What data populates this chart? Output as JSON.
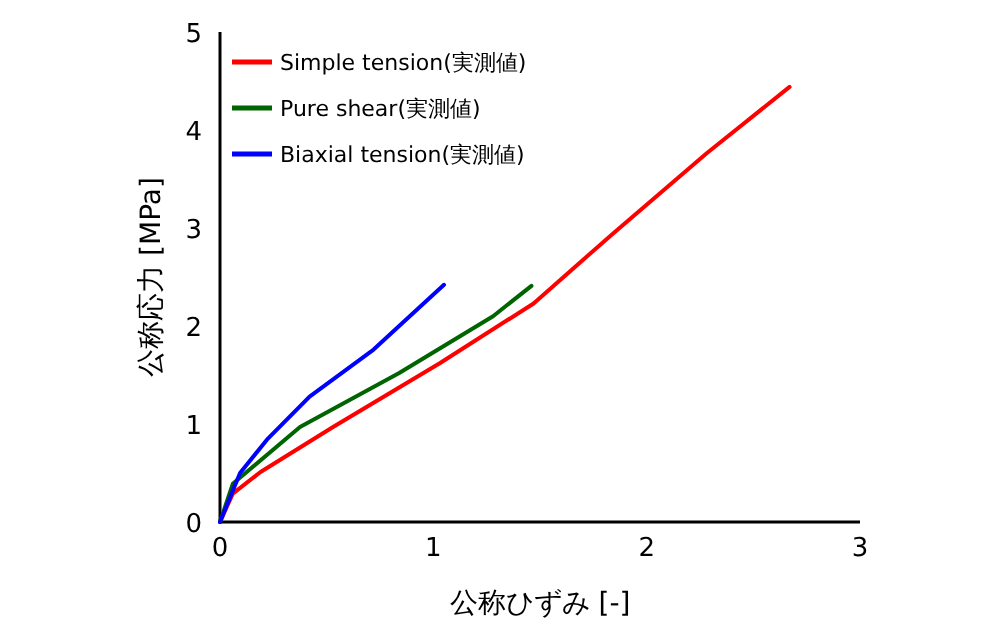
{
  "chart_data": {
    "type": "line",
    "xlabel": "公称ひずみ [-]",
    "ylabel": "公称応力 [MPa]",
    "xlim": [
      0,
      3
    ],
    "ylim": [
      0,
      5
    ],
    "xticks": [
      0,
      1,
      2,
      3
    ],
    "yticks": [
      0,
      1,
      2,
      3,
      4,
      5
    ],
    "legend": "top left",
    "grid": false,
    "marker": "none",
    "line_style": "solid",
    "series": [
      {
        "name": "Simple tension(実測値)",
        "color": "#ff0000",
        "x": [
          0,
          0.06,
          0.19,
          0.53,
          1.03,
          1.47,
          1.84,
          2.28,
          2.67
        ],
        "values": [
          0,
          0.29,
          0.51,
          0.97,
          1.62,
          2.23,
          2.94,
          3.76,
          4.44
        ]
      },
      {
        "name": "Pure shear(実測値)",
        "color": "#006400",
        "x": [
          0,
          0.06,
          0.375,
          0.84,
          1.28,
          1.46
        ],
        "values": [
          0,
          0.39,
          0.97,
          1.52,
          2.1,
          2.41
        ]
      },
      {
        "name": "Biaxial tension(実測値)",
        "color": "#0000ff",
        "x": [
          0,
          0.094,
          0.22,
          0.42,
          0.72,
          1.05
        ],
        "values": [
          0,
          0.5,
          0.84,
          1.28,
          1.76,
          2.42
        ]
      }
    ]
  }
}
